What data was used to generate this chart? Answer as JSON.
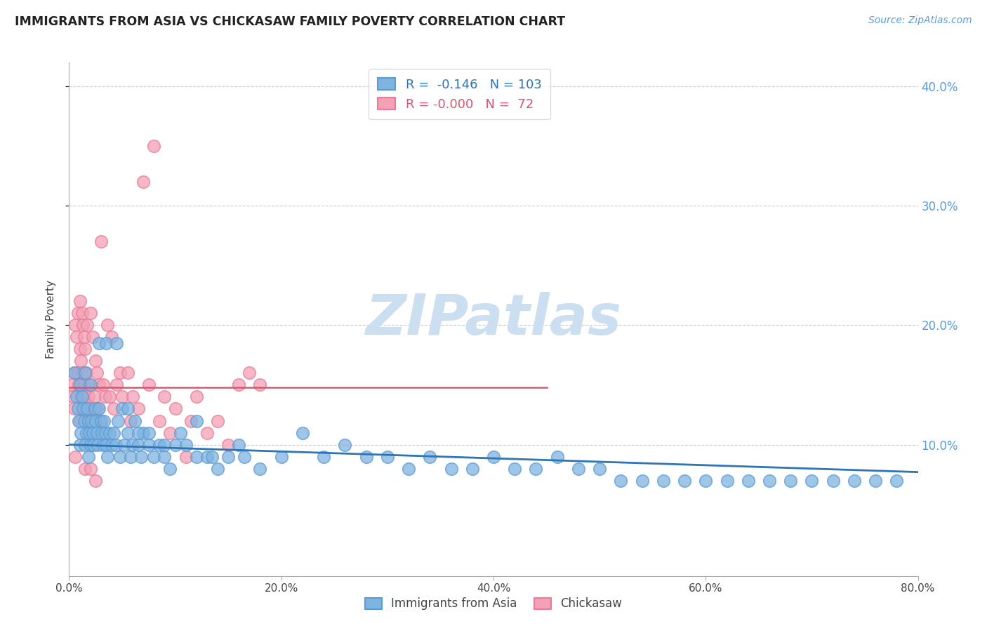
{
  "title": "IMMIGRANTS FROM ASIA VS CHICKASAW FAMILY POVERTY CORRELATION CHART",
  "source": "Source: ZipAtlas.com",
  "ylabel": "Family Poverty",
  "xlim": [
    0,
    0.8
  ],
  "ylim": [
    -0.01,
    0.42
  ],
  "blue_color": "#7fb3e0",
  "pink_color": "#f4a0b5",
  "blue_edge_color": "#5b9bd5",
  "pink_edge_color": "#e87a9a",
  "blue_line_color": "#2e75b6",
  "pink_line_color": "#d9546e",
  "watermark": "ZIPatlas",
  "watermark_color": "#ccdff0",
  "grid_color": "#cccccc",
  "legend_label_1": "R =  -0.146   N = 103",
  "legend_label_2": "R = -0.000   N =  72",
  "legend_color_1": "#2e75b6",
  "legend_color_2": "#d9546e",
  "bottom_legend_1": "Immigrants from Asia",
  "bottom_legend_2": "Chickasaw",
  "blue_trend_x": [
    0.0,
    0.8
  ],
  "blue_trend_y": [
    0.1,
    0.077
  ],
  "pink_trend_x": [
    0.0,
    0.45
  ],
  "pink_trend_y": [
    0.148,
    0.148
  ],
  "blue_scatter_x": [
    0.005,
    0.007,
    0.008,
    0.009,
    0.01,
    0.01,
    0.011,
    0.012,
    0.013,
    0.014,
    0.015,
    0.015,
    0.016,
    0.017,
    0.018,
    0.018,
    0.019,
    0.02,
    0.02,
    0.021,
    0.022,
    0.023,
    0.024,
    0.025,
    0.026,
    0.027,
    0.028,
    0.03,
    0.031,
    0.032,
    0.033,
    0.034,
    0.035,
    0.036,
    0.038,
    0.04,
    0.042,
    0.044,
    0.046,
    0.048,
    0.05,
    0.052,
    0.055,
    0.058,
    0.06,
    0.062,
    0.065,
    0.068,
    0.07,
    0.075,
    0.08,
    0.085,
    0.09,
    0.095,
    0.1,
    0.11,
    0.12,
    0.13,
    0.14,
    0.15,
    0.165,
    0.18,
    0.2,
    0.22,
    0.24,
    0.26,
    0.28,
    0.3,
    0.32,
    0.34,
    0.36,
    0.38,
    0.4,
    0.42,
    0.44,
    0.46,
    0.48,
    0.5,
    0.52,
    0.54,
    0.56,
    0.58,
    0.6,
    0.62,
    0.64,
    0.66,
    0.68,
    0.7,
    0.72,
    0.74,
    0.76,
    0.78,
    0.028,
    0.035,
    0.045,
    0.055,
    0.065,
    0.075,
    0.09,
    0.105,
    0.12,
    0.135,
    0.16
  ],
  "blue_scatter_y": [
    0.16,
    0.14,
    0.13,
    0.12,
    0.15,
    0.1,
    0.11,
    0.14,
    0.13,
    0.12,
    0.16,
    0.1,
    0.11,
    0.13,
    0.12,
    0.09,
    0.11,
    0.15,
    0.1,
    0.12,
    0.11,
    0.1,
    0.13,
    0.12,
    0.11,
    0.1,
    0.13,
    0.12,
    0.11,
    0.1,
    0.12,
    0.11,
    0.1,
    0.09,
    0.11,
    0.1,
    0.11,
    0.1,
    0.12,
    0.09,
    0.13,
    0.1,
    0.11,
    0.09,
    0.1,
    0.12,
    0.1,
    0.09,
    0.11,
    0.1,
    0.09,
    0.1,
    0.09,
    0.08,
    0.1,
    0.1,
    0.09,
    0.09,
    0.08,
    0.09,
    0.09,
    0.08,
    0.09,
    0.11,
    0.09,
    0.1,
    0.09,
    0.09,
    0.08,
    0.09,
    0.08,
    0.08,
    0.09,
    0.08,
    0.08,
    0.09,
    0.08,
    0.08,
    0.07,
    0.07,
    0.07,
    0.07,
    0.07,
    0.07,
    0.07,
    0.07,
    0.07,
    0.07,
    0.07,
    0.07,
    0.07,
    0.07,
    0.185,
    0.185,
    0.185,
    0.13,
    0.11,
    0.11,
    0.1,
    0.11,
    0.12,
    0.09,
    0.1
  ],
  "pink_scatter_x": [
    0.003,
    0.004,
    0.005,
    0.006,
    0.007,
    0.008,
    0.008,
    0.009,
    0.01,
    0.01,
    0.011,
    0.011,
    0.012,
    0.012,
    0.013,
    0.013,
    0.014,
    0.014,
    0.015,
    0.015,
    0.016,
    0.016,
    0.017,
    0.017,
    0.018,
    0.019,
    0.02,
    0.021,
    0.022,
    0.023,
    0.024,
    0.025,
    0.026,
    0.027,
    0.028,
    0.03,
    0.032,
    0.034,
    0.036,
    0.038,
    0.04,
    0.042,
    0.045,
    0.048,
    0.05,
    0.055,
    0.058,
    0.06,
    0.065,
    0.07,
    0.075,
    0.08,
    0.085,
    0.09,
    0.095,
    0.1,
    0.11,
    0.115,
    0.12,
    0.13,
    0.14,
    0.15,
    0.16,
    0.17,
    0.18,
    0.005,
    0.006,
    0.01,
    0.015,
    0.02,
    0.025,
    0.03
  ],
  "pink_scatter_y": [
    0.15,
    0.14,
    0.16,
    0.2,
    0.19,
    0.21,
    0.16,
    0.15,
    0.18,
    0.22,
    0.14,
    0.17,
    0.21,
    0.16,
    0.2,
    0.13,
    0.19,
    0.15,
    0.14,
    0.18,
    0.13,
    0.16,
    0.12,
    0.2,
    0.14,
    0.15,
    0.21,
    0.13,
    0.19,
    0.12,
    0.14,
    0.17,
    0.16,
    0.13,
    0.15,
    0.27,
    0.15,
    0.14,
    0.2,
    0.14,
    0.19,
    0.13,
    0.15,
    0.16,
    0.14,
    0.16,
    0.12,
    0.14,
    0.13,
    0.32,
    0.15,
    0.35,
    0.12,
    0.14,
    0.11,
    0.13,
    0.09,
    0.12,
    0.14,
    0.11,
    0.12,
    0.1,
    0.15,
    0.16,
    0.15,
    0.13,
    0.09,
    0.12,
    0.08,
    0.08,
    0.07,
    0.12
  ]
}
